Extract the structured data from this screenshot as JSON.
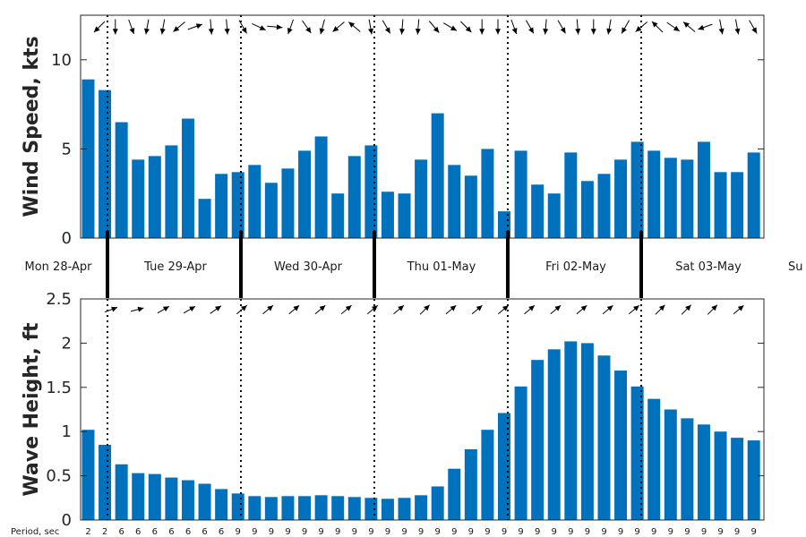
{
  "chart_data": [
    {
      "type": "bar",
      "ylabel": "Wind Speed, kts",
      "ylim": [
        0,
        12.5
      ],
      "yticks": [
        0,
        5,
        10
      ],
      "grid": false,
      "color": "#0072bd",
      "values": [
        8.9,
        8.3,
        6.5,
        4.4,
        4.6,
        5.2,
        6.7,
        2.2,
        3.6,
        3.7,
        4.1,
        3.1,
        3.9,
        4.9,
        5.7,
        2.5,
        4.6,
        5.2,
        2.6,
        2.5,
        4.4,
        7.0,
        4.1,
        3.5,
        5.0,
        1.5,
        4.9,
        3.0,
        2.5,
        4.8,
        3.2,
        3.6,
        4.4,
        5.4,
        4.9,
        4.5,
        4.4,
        5.4,
        3.7,
        3.7,
        4.8
      ],
      "direction_arrows_deg": [
        225,
        270,
        290,
        260,
        260,
        220,
        20,
        275,
        275,
        300,
        335,
        355,
        250,
        305,
        255,
        220,
        140,
        280,
        300,
        265,
        265,
        310,
        330,
        315,
        270,
        270,
        290,
        300,
        265,
        300,
        275,
        270,
        260,
        240,
        220,
        135,
        325,
        140,
        200,
        280,
        280,
        300,
        320
      ]
    },
    {
      "type": "bar",
      "ylabel": "Wave Height, ft",
      "ylim": [
        0,
        2.5
      ],
      "yticks": [
        0,
        0.5,
        1,
        1.5,
        2,
        2.5
      ],
      "ytick_labels": [
        "0",
        "0.5",
        "1",
        "1.5",
        "2",
        "2.5"
      ],
      "grid": false,
      "color": "#0072bd",
      "values": [
        1.02,
        0.85,
        0.63,
        0.53,
        0.52,
        0.48,
        0.45,
        0.41,
        0.35,
        0.3,
        0.27,
        0.26,
        0.27,
        0.27,
        0.28,
        0.27,
        0.26,
        0.25,
        0.24,
        0.25,
        0.28,
        0.38,
        0.58,
        0.8,
        1.02,
        1.21,
        1.51,
        1.81,
        1.93,
        2.02,
        2.0,
        1.86,
        1.69,
        1.51,
        1.37,
        1.25,
        1.15,
        1.08,
        1.0,
        0.93,
        0.9
      ],
      "direction_arrows_deg": [
        20,
        15,
        30,
        30,
        35,
        40,
        40,
        40,
        40,
        40,
        40,
        40,
        45,
        40,
        40,
        40,
        40,
        40,
        40,
        40,
        40,
        45,
        45,
        45,
        40,
        40,
        40
      ],
      "period_label": "Period, sec",
      "period_values": [
        "2",
        "2",
        "6",
        "6",
        "6",
        "6",
        "6",
        "6",
        "6",
        "9",
        "9",
        "9",
        "9",
        "9",
        "9",
        "9",
        "9",
        "9",
        "9",
        "9",
        "9",
        "9",
        "9",
        "9",
        "9",
        "9",
        "9",
        "9",
        "9",
        "9",
        "9",
        "9",
        "9",
        "9",
        "9",
        "9",
        "9",
        "9",
        "9",
        "9",
        "9"
      ]
    }
  ],
  "days": [
    "Mon 28-Apr",
    "Tue 29-Apr",
    "Wed 30-Apr",
    "Thu 01-May",
    "Fri 02-May",
    "Sat 03-May",
    "Su"
  ]
}
